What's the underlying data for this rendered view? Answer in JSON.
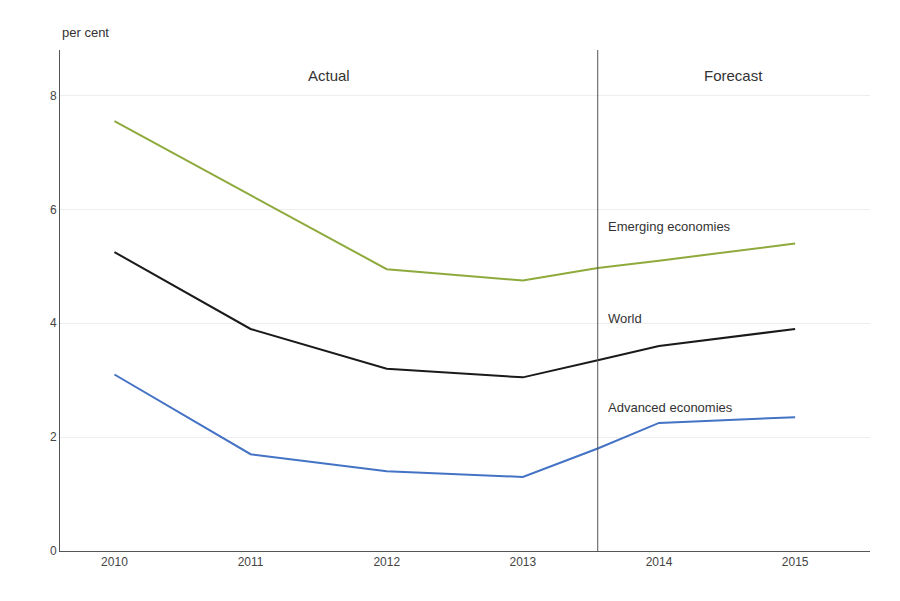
{
  "chart_data": {
    "type": "line",
    "ylabel": "per cent",
    "x": [
      2010,
      2011,
      2012,
      2013,
      2013.55,
      2014,
      2015
    ],
    "series": [
      {
        "name": "Emerging economies",
        "color": "#8faa3c",
        "values": [
          7.55,
          6.25,
          4.95,
          4.75,
          4.97,
          5.1,
          5.4
        ]
      },
      {
        "name": "World",
        "color": "#1a1a1a",
        "values": [
          5.25,
          3.9,
          3.2,
          3.05,
          3.35,
          3.6,
          3.9
        ]
      },
      {
        "name": "Advanced economies",
        "color": "#4472c4",
        "values": [
          3.1,
          1.7,
          1.4,
          1.3,
          1.8,
          2.25,
          2.35
        ]
      }
    ],
    "divider": 2013.55,
    "annotations": [
      "Actual",
      "Forecast"
    ],
    "xlim": [
      2009.6,
      2015.55
    ],
    "ylim": [
      0,
      8.8
    ],
    "xticks": [
      2010,
      2011,
      2012,
      2013,
      2014,
      2015
    ],
    "yticks": [
      0,
      2,
      4,
      6,
      8
    ],
    "grid": true
  }
}
